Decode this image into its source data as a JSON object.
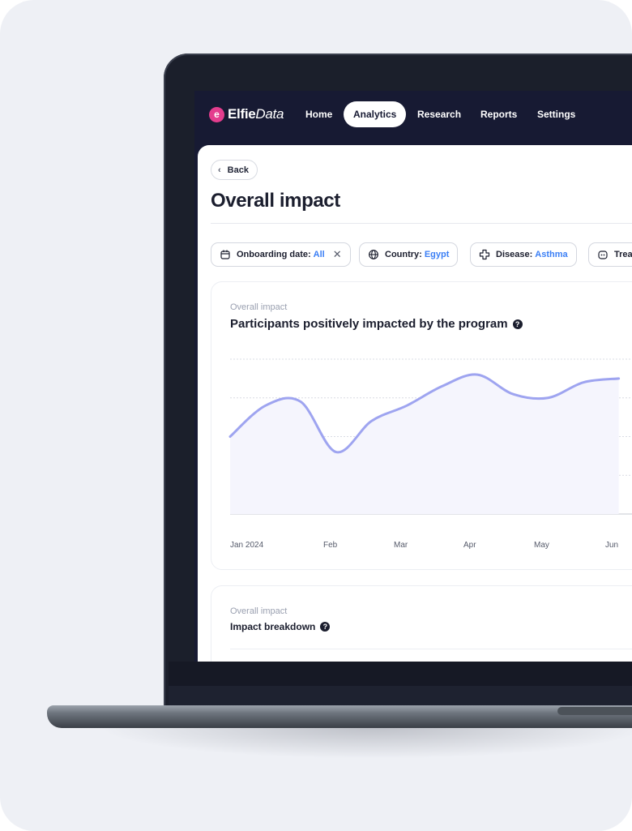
{
  "app": {
    "logo_bold": "Elfie",
    "logo_italic": "Data",
    "logo_glyph": "e"
  },
  "nav": {
    "items": [
      {
        "label": "Home",
        "active": false
      },
      {
        "label": "Analytics",
        "active": true
      },
      {
        "label": "Research",
        "active": false
      },
      {
        "label": "Reports",
        "active": false
      },
      {
        "label": "Settings",
        "active": false
      }
    ]
  },
  "page": {
    "back_label": "Back",
    "title": "Overall impact"
  },
  "filters": [
    {
      "label": "Onboarding date:",
      "value": "All",
      "icon": "calendar-icon",
      "clearable": true
    },
    {
      "label": "Country:",
      "value": "Egypt",
      "icon": "globe-icon",
      "clearable": false
    },
    {
      "label": "Disease:",
      "value": "Asthma",
      "icon": "cross-icon",
      "clearable": false
    },
    {
      "label": "Trea",
      "value": "",
      "icon": "treatment-icon",
      "clearable": false
    }
  ],
  "impact_chart": {
    "kicker": "Overall impact",
    "title": "Participants positively impacted by the program",
    "help_glyph": "?"
  },
  "breakdown": {
    "kicker": "Overall impact",
    "title": "Impact breakdown",
    "help_glyph": "?"
  },
  "colors": {
    "nav_bg": "#171a33",
    "line": "#9ea4f0",
    "area": "#f5f5fd",
    "accent": "#3b7ff5",
    "logo": "#e43d8e"
  },
  "chart_data": {
    "type": "area",
    "x": [
      "Jan 2024",
      "",
      "Feb",
      "",
      "Mar",
      "",
      "Apr",
      "",
      "May",
      "",
      "Jun",
      ""
    ],
    "values": [
      2.0,
      2.8,
      2.9,
      1.6,
      2.4,
      2.8,
      3.3,
      3.6,
      3.1,
      3.0,
      3.4,
      3.5
    ],
    "ylim": [
      0,
      4
    ],
    "tick_labels": [
      "Jan 2024",
      "Feb",
      "Mar",
      "Apr",
      "May",
      "Jun"
    ],
    "grid": true
  }
}
